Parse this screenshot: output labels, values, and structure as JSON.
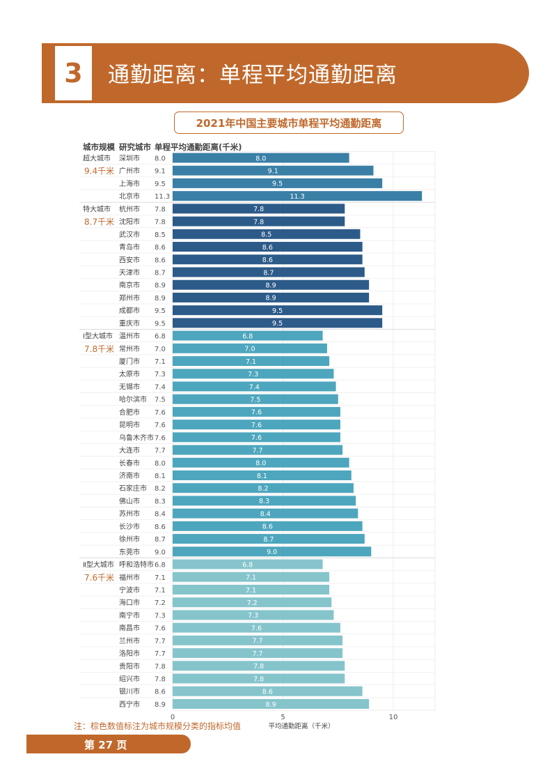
{
  "header": {
    "number": "3",
    "title": "通勤距离：单程平均通勤距离"
  },
  "chart_data": {
    "type": "bar",
    "orientation": "horizontal",
    "title": "2021年中国主要城市单程平均通勤距离",
    "column_headers": {
      "size": "城市规模",
      "city": "研究城市",
      "value": "单程平均通勤距离(千米)"
    },
    "xlabel": "平均通勤距离（千米）",
    "xlim": [
      0,
      12
    ],
    "xticks": [
      0,
      5,
      10
    ],
    "groups": [
      {
        "name": "超大城市",
        "average": "9.4千米",
        "color": "#3a7fa6",
        "cities": [
          {
            "name": "深圳市",
            "value": 8.0
          },
          {
            "name": "广州市",
            "value": 9.1
          },
          {
            "name": "上海市",
            "value": 9.5
          },
          {
            "name": "北京市",
            "value": 11.3
          }
        ]
      },
      {
        "name": "特大城市",
        "average": "8.7千米",
        "color": "#2d5b89",
        "cities": [
          {
            "name": "杭州市",
            "value": 7.8
          },
          {
            "name": "沈阳市",
            "value": 7.8
          },
          {
            "name": "武汉市",
            "value": 8.5
          },
          {
            "name": "青岛市",
            "value": 8.6
          },
          {
            "name": "西安市",
            "value": 8.6
          },
          {
            "name": "天津市",
            "value": 8.7
          },
          {
            "name": "南京市",
            "value": 8.9
          },
          {
            "name": "郑州市",
            "value": 8.9
          },
          {
            "name": "成都市",
            "value": 9.5
          },
          {
            "name": "重庆市",
            "value": 9.5
          }
        ]
      },
      {
        "name": "Ⅰ型大城市",
        "average": "7.8千米",
        "color": "#4da6bd",
        "cities": [
          {
            "name": "温州市",
            "value": 6.8
          },
          {
            "name": "常州市",
            "value": 7.0
          },
          {
            "name": "厦门市",
            "value": 7.1
          },
          {
            "name": "太原市",
            "value": 7.3
          },
          {
            "name": "无锡市",
            "value": 7.4
          },
          {
            "name": "哈尔滨市",
            "value": 7.5
          },
          {
            "name": "合肥市",
            "value": 7.6
          },
          {
            "name": "昆明市",
            "value": 7.6
          },
          {
            "name": "乌鲁木齐市",
            "value": 7.6
          },
          {
            "name": "大连市",
            "value": 7.7
          },
          {
            "name": "长春市",
            "value": 8.0
          },
          {
            "name": "济南市",
            "value": 8.1
          },
          {
            "name": "石家庄市",
            "value": 8.2
          },
          {
            "name": "佛山市",
            "value": 8.3
          },
          {
            "name": "苏州市",
            "value": 8.4
          },
          {
            "name": "长沙市",
            "value": 8.6
          },
          {
            "name": "徐州市",
            "value": 8.7
          },
          {
            "name": "东莞市",
            "value": 9.0
          }
        ]
      },
      {
        "name": "Ⅱ型大城市",
        "average": "7.6千米",
        "color": "#86c4cc",
        "cities": [
          {
            "name": "呼和浩特市",
            "value": 6.8
          },
          {
            "name": "福州市",
            "value": 7.1
          },
          {
            "name": "宁波市",
            "value": 7.1
          },
          {
            "name": "海口市",
            "value": 7.2
          },
          {
            "name": "南宁市",
            "value": 7.3
          },
          {
            "name": "南昌市",
            "value": 7.6
          },
          {
            "name": "兰州市",
            "value": 7.7
          },
          {
            "name": "洛阳市",
            "value": 7.7
          },
          {
            "name": "贵阳市",
            "value": 7.8
          },
          {
            "name": "绍兴市",
            "value": 7.8
          },
          {
            "name": "银川市",
            "value": 8.6
          },
          {
            "name": "西宁市",
            "value": 8.9
          }
        ]
      }
    ]
  },
  "note": "注：棕色数值标注为城市规模分类的指标均值",
  "footer": {
    "page": "第 27 页"
  },
  "colors": {
    "accent": "#c0682b",
    "average_label": "#c0682b"
  }
}
